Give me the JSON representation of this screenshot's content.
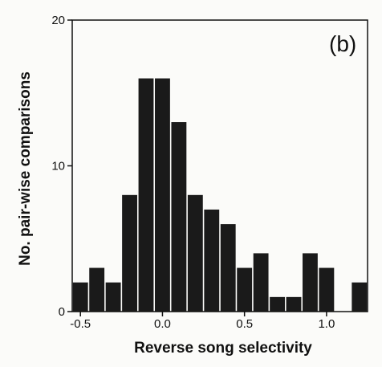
{
  "chart_data": {
    "type": "bar",
    "panel_label": "(b)",
    "xlabel": "Reverse song selectivity",
    "ylabel": "No. pair-wise comparisons",
    "xlim": [
      -0.55,
      1.25
    ],
    "ylim": [
      0,
      20
    ],
    "bin_width": 0.1,
    "bin_starts": [
      -0.55,
      -0.45,
      -0.35,
      -0.25,
      -0.15,
      -0.05,
      0.05,
      0.15,
      0.25,
      0.35,
      0.45,
      0.55,
      0.65,
      0.75,
      0.85,
      0.95,
      1.05,
      1.15
    ],
    "values": [
      2,
      3,
      2,
      8,
      16,
      16,
      13,
      8,
      7,
      6,
      3,
      4,
      1,
      1,
      4,
      3,
      0,
      2
    ],
    "x_ticks": [
      -0.5,
      0.0,
      0.5,
      1.0
    ],
    "x_tick_labels": [
      "-0.5",
      "0.0",
      "0.5",
      "1.0"
    ],
    "y_ticks": [
      0,
      10,
      20
    ],
    "y_tick_labels": [
      "0",
      "10",
      "20"
    ],
    "bar_color": "#1a1a1a",
    "grid": false
  }
}
